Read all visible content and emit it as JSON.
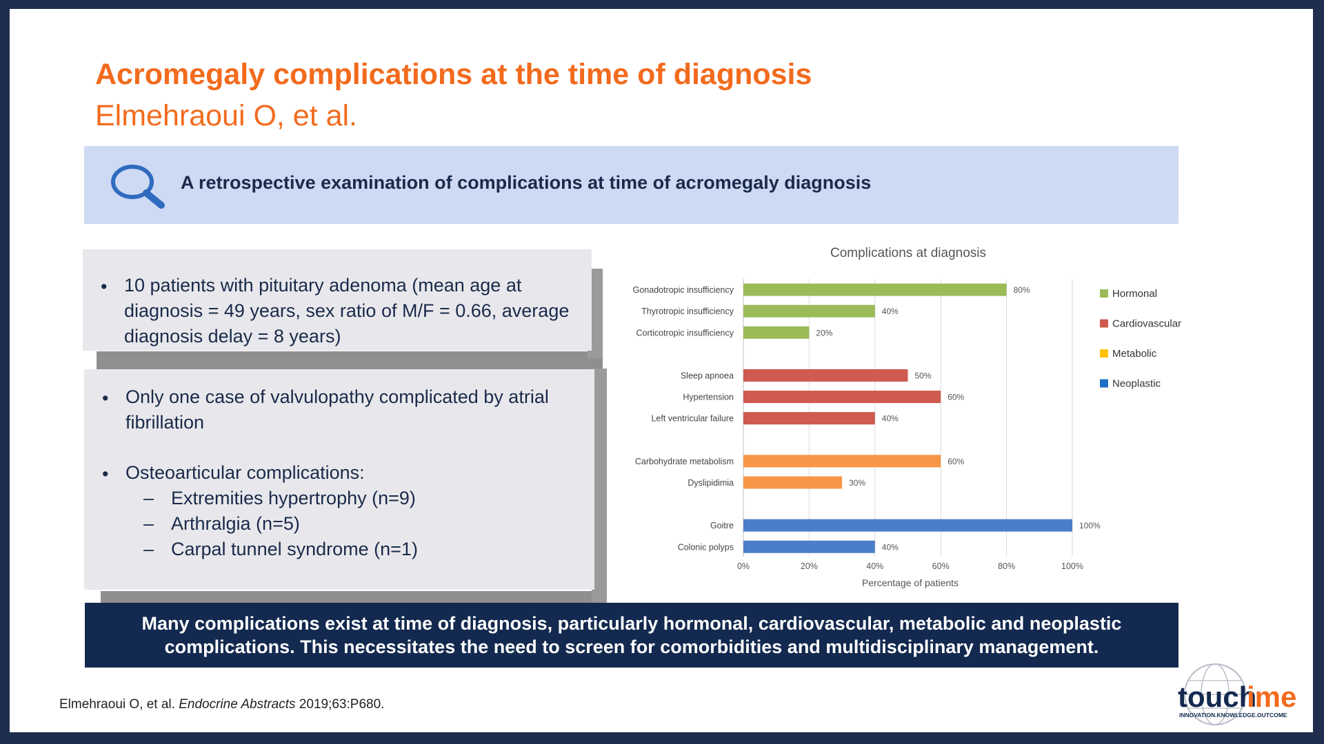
{
  "slide": {
    "title": "Acromegaly complications at the time of diagnosis",
    "subtitle": "Elmehraoui O, et al.",
    "banner_text": "A retrospective examination of complications at time of acromegaly diagnosis",
    "bullets_box1": [
      "10 patients with pituitary adenoma (mean age at",
      "diagnosis = 49 years, sex ratio of M/F = 0.66, average",
      "diagnosis delay = 8 years)"
    ],
    "bullets_box2": {
      "b1_line1": "Only one case of valvulopathy complicated by atrial",
      "b1_line2": "fibrillation",
      "b2": "Osteoarticular complications:",
      "sub": [
        "Extremities hypertrophy (n=9)",
        "Arthralgia (n=5)",
        "Carpal tunnel syndrome (n=1)"
      ]
    },
    "bullet_symbol": "•",
    "dash_symbol": "–",
    "conclusion_line1": "Many complications exist at time of diagnosis, particularly hormonal, cardiovascular, metabolic and neoplastic",
    "conclusion_line2": "complications. This necessitates the need to screen for comorbidities and multidisciplinary management.",
    "reference": {
      "authors": "Elmehraoui O, et al. ",
      "journal": "Endocrine Abstracts",
      "details": " 2019;63:P680."
    },
    "logo": {
      "text_a": "touch",
      "text_b": "ime",
      "tagline": "INNOVATION.KNOWLEDGE.OUTCOME"
    }
  },
  "colors": {
    "Hormonal": "#9bbb59",
    "Cardiovascular": "#cf5a50",
    "Metabolic": "#f79646",
    "Neoplastic": "#4a7ec8",
    "legend_metabolic": "#ffc000",
    "legend_neoplastic": "#1f6fc7"
  },
  "chart_data": {
    "type": "bar",
    "orientation": "horizontal",
    "title": "Complications at diagnosis",
    "xlabel": "Percentage of patients",
    "xlim": [
      0,
      100
    ],
    "xticks": [
      "0%",
      "20%",
      "40%",
      "60%",
      "80%",
      "100%"
    ],
    "legend_position": "right",
    "groups": [
      {
        "name": "Hormonal",
        "items": [
          {
            "label": "Gonadotropic insufficiency",
            "value": 80
          },
          {
            "label": "Thyrotropic insufficiency",
            "value": 40
          },
          {
            "label": "Corticotropic insufficiency",
            "value": 20
          }
        ]
      },
      {
        "name": "Cardiovascular",
        "items": [
          {
            "label": "Sleep apnoea",
            "value": 50
          },
          {
            "label": "Hypertension",
            "value": 60
          },
          {
            "label": "Left ventricular failure",
            "value": 40
          }
        ]
      },
      {
        "name": "Metabolic",
        "items": [
          {
            "label": "Carbohydrate metabolism",
            "value": 60
          },
          {
            "label": "Dyslipidimia",
            "value": 30
          }
        ]
      },
      {
        "name": "Neoplastic",
        "items": [
          {
            "label": "Goitre",
            "value": 100
          },
          {
            "label": "Colonic polyps",
            "value": 40
          }
        ]
      }
    ]
  }
}
